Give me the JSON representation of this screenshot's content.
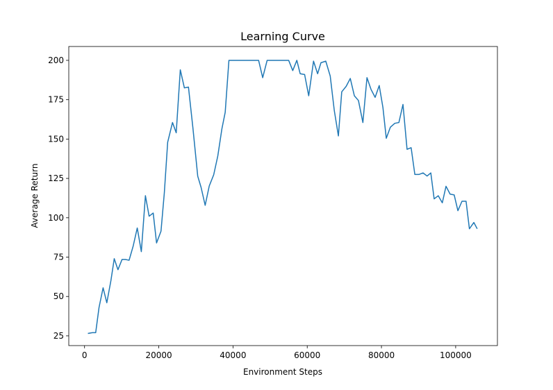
{
  "chart_data": {
    "type": "line",
    "title": "Learning Curve",
    "x_label": "Environment Steps",
    "y_label": "Average Return",
    "x": [
      900,
      2100,
      3000,
      3900,
      5000,
      6000,
      7100,
      8000,
      9000,
      10100,
      11000,
      12000,
      13100,
      14200,
      15300,
      16400,
      17400,
      18500,
      19400,
      20600,
      21500,
      22400,
      23700,
      24700,
      25800,
      26900,
      28000,
      29200,
      30500,
      31400,
      32500,
      33600,
      34800,
      35900,
      37000,
      37900,
      38900,
      41000,
      43000,
      45000,
      46900,
      48000,
      49200,
      51000,
      53000,
      55000,
      56100,
      57200,
      58100,
      59300,
      60400,
      61700,
      62800,
      63700,
      65000,
      66200,
      67300,
      68400,
      69300,
      70500,
      71600,
      72700,
      73800,
      75000,
      76100,
      77200,
      78300,
      79400,
      80400,
      81300,
      82400,
      83600,
      84700,
      85800,
      86900,
      88000,
      89000,
      90100,
      91200,
      92300,
      93300,
      94200,
      95300,
      96400,
      97400,
      98500,
      99600,
      100600,
      101700,
      102800,
      103700,
      104900,
      105800
    ],
    "series": [
      {
        "name": "Average Return",
        "color": "#1f77b4",
        "values": [
          26.5,
          27,
          27,
          43,
          55.5,
          46,
          60,
          74,
          67,
          73.5,
          73.5,
          73,
          82,
          93.5,
          78.5,
          114,
          101,
          103,
          84,
          91.5,
          116,
          148,
          160.5,
          154,
          194,
          182.5,
          183,
          157,
          126.4,
          119.3,
          107.9,
          120.2,
          127.3,
          139.2,
          156.4,
          167,
          200,
          200,
          200,
          200,
          200,
          189,
          200,
          200,
          200,
          200,
          193.5,
          200,
          191.5,
          191,
          177.5,
          199.5,
          191.5,
          198.5,
          199.5,
          190,
          168,
          152,
          180,
          183.5,
          188.5,
          177.5,
          174.5,
          160.5,
          189,
          181.5,
          176.5,
          184,
          170,
          150.5,
          157.5,
          160,
          160.5,
          172,
          143.5,
          144.5,
          127.5,
          127.5,
          128.5,
          126.5,
          128.5,
          112,
          114,
          109.5,
          120,
          115,
          114.5,
          104.5,
          110.5,
          110.5,
          93,
          97,
          93
        ]
      }
    ],
    "xlim": [
      -4250,
      111250
    ],
    "ylim": [
      18.8,
      208.8
    ],
    "xticks": [
      0,
      20000,
      40000,
      60000,
      80000,
      100000
    ],
    "yticks": [
      25,
      50,
      75,
      100,
      125,
      150,
      175,
      200
    ]
  }
}
